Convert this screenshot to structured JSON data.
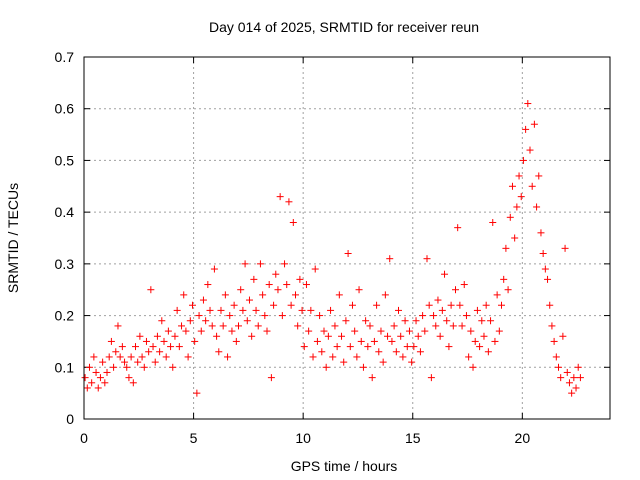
{
  "chart_data": {
    "type": "scatter",
    "title": "Day 014 of 2025, SRMTID for receiver reun",
    "xlabel": "GPS time / hours",
    "ylabel": "SRMTID / TECUs",
    "xlim": [
      0,
      24
    ],
    "ylim": [
      0,
      0.7
    ],
    "x_ticks": [
      0,
      5,
      10,
      15,
      20
    ],
    "y_ticks": [
      0,
      0.1,
      0.2,
      0.3,
      0.4,
      0.5,
      0.6,
      0.7
    ],
    "x_tick_labels": [
      "0",
      "5",
      "10",
      "15",
      "20"
    ],
    "y_tick_labels": [
      "0",
      "0.1",
      "0.2",
      "0.3",
      "0.4",
      "0.5",
      "0.6",
      "0.7"
    ],
    "grid": true,
    "marker": "+",
    "marker_color": "#ff0000",
    "series": [
      {
        "name": "SRMTID",
        "points": [
          [
            0.05,
            0.08
          ],
          [
            0.15,
            0.06
          ],
          [
            0.25,
            0.1
          ],
          [
            0.35,
            0.07
          ],
          [
            0.45,
            0.12
          ],
          [
            0.55,
            0.09
          ],
          [
            0.65,
            0.06
          ],
          [
            0.75,
            0.08
          ],
          [
            0.85,
            0.11
          ],
          [
            0.95,
            0.07
          ],
          [
            1.05,
            0.09
          ],
          [
            1.15,
            0.12
          ],
          [
            1.25,
            0.15
          ],
          [
            1.35,
            0.1
          ],
          [
            1.45,
            0.13
          ],
          [
            1.55,
            0.18
          ],
          [
            1.65,
            0.12
          ],
          [
            1.75,
            0.14
          ],
          [
            1.85,
            0.11
          ],
          [
            1.95,
            0.1
          ],
          [
            2.05,
            0.08
          ],
          [
            2.15,
            0.12
          ],
          [
            2.25,
            0.07
          ],
          [
            2.35,
            0.14
          ],
          [
            2.45,
            0.11
          ],
          [
            2.55,
            0.16
          ],
          [
            2.65,
            0.12
          ],
          [
            2.75,
            0.1
          ],
          [
            2.85,
            0.15
          ],
          [
            2.95,
            0.13
          ],
          [
            3.05,
            0.25
          ],
          [
            3.15,
            0.14
          ],
          [
            3.25,
            0.11
          ],
          [
            3.35,
            0.16
          ],
          [
            3.45,
            0.13
          ],
          [
            3.55,
            0.19
          ],
          [
            3.65,
            0.15
          ],
          [
            3.75,
            0.12
          ],
          [
            3.85,
            0.17
          ],
          [
            3.95,
            0.14
          ],
          [
            4.05,
            0.1
          ],
          [
            4.15,
            0.16
          ],
          [
            4.25,
            0.21
          ],
          [
            4.35,
            0.14
          ],
          [
            4.45,
            0.18
          ],
          [
            4.55,
            0.24
          ],
          [
            4.65,
            0.17
          ],
          [
            4.75,
            0.12
          ],
          [
            4.85,
            0.19
          ],
          [
            4.95,
            0.22
          ],
          [
            5.05,
            0.15
          ],
          [
            5.15,
            0.05
          ],
          [
            5.25,
            0.2
          ],
          [
            5.35,
            0.17
          ],
          [
            5.45,
            0.23
          ],
          [
            5.55,
            0.19
          ],
          [
            5.65,
            0.26
          ],
          [
            5.75,
            0.21
          ],
          [
            5.85,
            0.18
          ],
          [
            5.95,
            0.29
          ],
          [
            6.05,
            0.16
          ],
          [
            6.15,
            0.13
          ],
          [
            6.25,
            0.21
          ],
          [
            6.35,
            0.18
          ],
          [
            6.45,
            0.24
          ],
          [
            6.55,
            0.12
          ],
          [
            6.65,
            0.2
          ],
          [
            6.75,
            0.17
          ],
          [
            6.85,
            0.22
          ],
          [
            6.95,
            0.15
          ],
          [
            7.05,
            0.18
          ],
          [
            7.15,
            0.25
          ],
          [
            7.25,
            0.21
          ],
          [
            7.35,
            0.3
          ],
          [
            7.45,
            0.19
          ],
          [
            7.55,
            0.23
          ],
          [
            7.65,
            0.16
          ],
          [
            7.75,
            0.27
          ],
          [
            7.85,
            0.21
          ],
          [
            7.95,
            0.18
          ],
          [
            8.05,
            0.3
          ],
          [
            8.15,
            0.24
          ],
          [
            8.25,
            0.2
          ],
          [
            8.35,
            0.17
          ],
          [
            8.45,
            0.26
          ],
          [
            8.55,
            0.08
          ],
          [
            8.65,
            0.22
          ],
          [
            8.75,
            0.28
          ],
          [
            8.85,
            0.25
          ],
          [
            8.95,
            0.43
          ],
          [
            9.05,
            0.2
          ],
          [
            9.15,
            0.3
          ],
          [
            9.25,
            0.26
          ],
          [
            9.35,
            0.42
          ],
          [
            9.45,
            0.22
          ],
          [
            9.55,
            0.38
          ],
          [
            9.65,
            0.24
          ],
          [
            9.75,
            0.18
          ],
          [
            9.85,
            0.27
          ],
          [
            9.95,
            0.21
          ],
          [
            10.05,
            0.14
          ],
          [
            10.15,
            0.26
          ],
          [
            10.25,
            0.17
          ],
          [
            10.35,
            0.21
          ],
          [
            10.45,
            0.12
          ],
          [
            10.55,
            0.29
          ],
          [
            10.65,
            0.15
          ],
          [
            10.75,
            0.2
          ],
          [
            10.85,
            0.13
          ],
          [
            10.95,
            0.17
          ],
          [
            11.05,
            0.1
          ],
          [
            11.15,
            0.16
          ],
          [
            11.25,
            0.21
          ],
          [
            11.35,
            0.12
          ],
          [
            11.45,
            0.18
          ],
          [
            11.55,
            0.14
          ],
          [
            11.65,
            0.24
          ],
          [
            11.75,
            0.16
          ],
          [
            11.85,
            0.11
          ],
          [
            11.95,
            0.19
          ],
          [
            12.05,
            0.32
          ],
          [
            12.15,
            0.14
          ],
          [
            12.25,
            0.22
          ],
          [
            12.35,
            0.17
          ],
          [
            12.45,
            0.12
          ],
          [
            12.55,
            0.25
          ],
          [
            12.65,
            0.15
          ],
          [
            12.75,
            0.1
          ],
          [
            12.85,
            0.19
          ],
          [
            12.95,
            0.14
          ],
          [
            13.05,
            0.18
          ],
          [
            13.15,
            0.08
          ],
          [
            13.25,
            0.15
          ],
          [
            13.35,
            0.22
          ],
          [
            13.45,
            0.13
          ],
          [
            13.55,
            0.17
          ],
          [
            13.65,
            0.11
          ],
          [
            13.75,
            0.24
          ],
          [
            13.85,
            0.16
          ],
          [
            13.95,
            0.31
          ],
          [
            14.05,
            0.15
          ],
          [
            14.15,
            0.18
          ],
          [
            14.25,
            0.13
          ],
          [
            14.35,
            0.21
          ],
          [
            14.45,
            0.16
          ],
          [
            14.55,
            0.12
          ],
          [
            14.65,
            0.19
          ],
          [
            14.75,
            0.14
          ],
          [
            14.85,
            0.17
          ],
          [
            14.95,
            0.11
          ],
          [
            15.05,
            0.14
          ],
          [
            15.15,
            0.19
          ],
          [
            15.25,
            0.16
          ],
          [
            15.35,
            0.13
          ],
          [
            15.45,
            0.2
          ],
          [
            15.55,
            0.17
          ],
          [
            15.65,
            0.31
          ],
          [
            15.75,
            0.22
          ],
          [
            15.85,
            0.08
          ],
          [
            15.95,
            0.2
          ],
          [
            16.05,
            0.18
          ],
          [
            16.15,
            0.23
          ],
          [
            16.25,
            0.16
          ],
          [
            16.35,
            0.21
          ],
          [
            16.45,
            0.28
          ],
          [
            16.55,
            0.19
          ],
          [
            16.65,
            0.14
          ],
          [
            16.75,
            0.22
          ],
          [
            16.85,
            0.18
          ],
          [
            16.95,
            0.25
          ],
          [
            17.05,
            0.37
          ],
          [
            17.15,
            0.22
          ],
          [
            17.25,
            0.18
          ],
          [
            17.35,
            0.26
          ],
          [
            17.45,
            0.2
          ],
          [
            17.55,
            0.12
          ],
          [
            17.65,
            0.17
          ],
          [
            17.75,
            0.1
          ],
          [
            17.85,
            0.15
          ],
          [
            17.95,
            0.21
          ],
          [
            18.05,
            0.14
          ],
          [
            18.15,
            0.19
          ],
          [
            18.25,
            0.16
          ],
          [
            18.35,
            0.22
          ],
          [
            18.45,
            0.13
          ],
          [
            18.55,
            0.19
          ],
          [
            18.65,
            0.38
          ],
          [
            18.75,
            0.15
          ],
          [
            18.85,
            0.24
          ],
          [
            18.95,
            0.17
          ],
          [
            19.05,
            0.22
          ],
          [
            19.15,
            0.27
          ],
          [
            19.25,
            0.33
          ],
          [
            19.35,
            0.25
          ],
          [
            19.45,
            0.39
          ],
          [
            19.55,
            0.45
          ],
          [
            19.65,
            0.35
          ],
          [
            19.75,
            0.41
          ],
          [
            19.85,
            0.47
          ],
          [
            19.95,
            0.43
          ],
          [
            20.05,
            0.5
          ],
          [
            20.15,
            0.56
          ],
          [
            20.25,
            0.61
          ],
          [
            20.35,
            0.52
          ],
          [
            20.45,
            0.45
          ],
          [
            20.55,
            0.57
          ],
          [
            20.65,
            0.41
          ],
          [
            20.75,
            0.47
          ],
          [
            20.85,
            0.36
          ],
          [
            20.95,
            0.32
          ],
          [
            21.05,
            0.29
          ],
          [
            21.15,
            0.27
          ],
          [
            21.25,
            0.22
          ],
          [
            21.35,
            0.18
          ],
          [
            21.45,
            0.15
          ],
          [
            21.55,
            0.12
          ],
          [
            21.65,
            0.1
          ],
          [
            21.75,
            0.08
          ],
          [
            21.85,
            0.16
          ],
          [
            21.95,
            0.33
          ],
          [
            22.05,
            0.09
          ],
          [
            22.15,
            0.07
          ],
          [
            22.25,
            0.05
          ],
          [
            22.35,
            0.08
          ],
          [
            22.45,
            0.06
          ],
          [
            22.55,
            0.1
          ],
          [
            22.65,
            0.08
          ]
        ]
      }
    ]
  }
}
